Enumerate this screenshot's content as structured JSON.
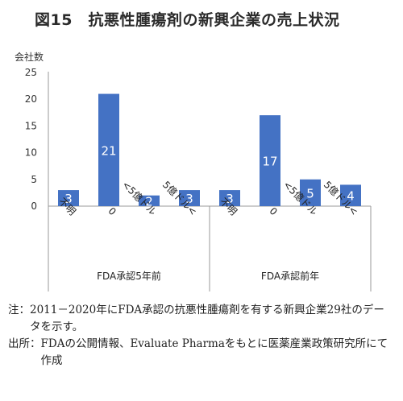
{
  "title": "図15　抗悪性腫瘍剤の新興企業の売上状況",
  "chart_data": {
    "type": "bar",
    "ylabel": "会社数",
    "ylim": [
      0,
      25
    ],
    "yticks": [
      "0",
      "5",
      "10",
      "15",
      "20",
      "25"
    ],
    "grid": false,
    "bar_color": "#4472c4",
    "groups": [
      {
        "label": "FDA承認5年前",
        "categories": [
          "不明",
          "0",
          "<5億ドル",
          "5億ドル<"
        ],
        "values": [
          3,
          21,
          2,
          3
        ]
      },
      {
        "label": "FDA承認前年",
        "categories": [
          "不明",
          "0",
          "<5億ドル",
          "5億ドル<"
        ],
        "values": [
          3,
          17,
          5,
          4
        ]
      }
    ]
  },
  "notes": [
    {
      "head": "注：",
      "text": "2011－2020年にFDA承認の抗悪性腫瘍剤を有する新興企業29社のデータを示す。"
    },
    {
      "head": "出所：",
      "text": "FDAの公開情報、Evaluate Pharmaをもとに医薬産業政策研究所にて作成"
    }
  ]
}
